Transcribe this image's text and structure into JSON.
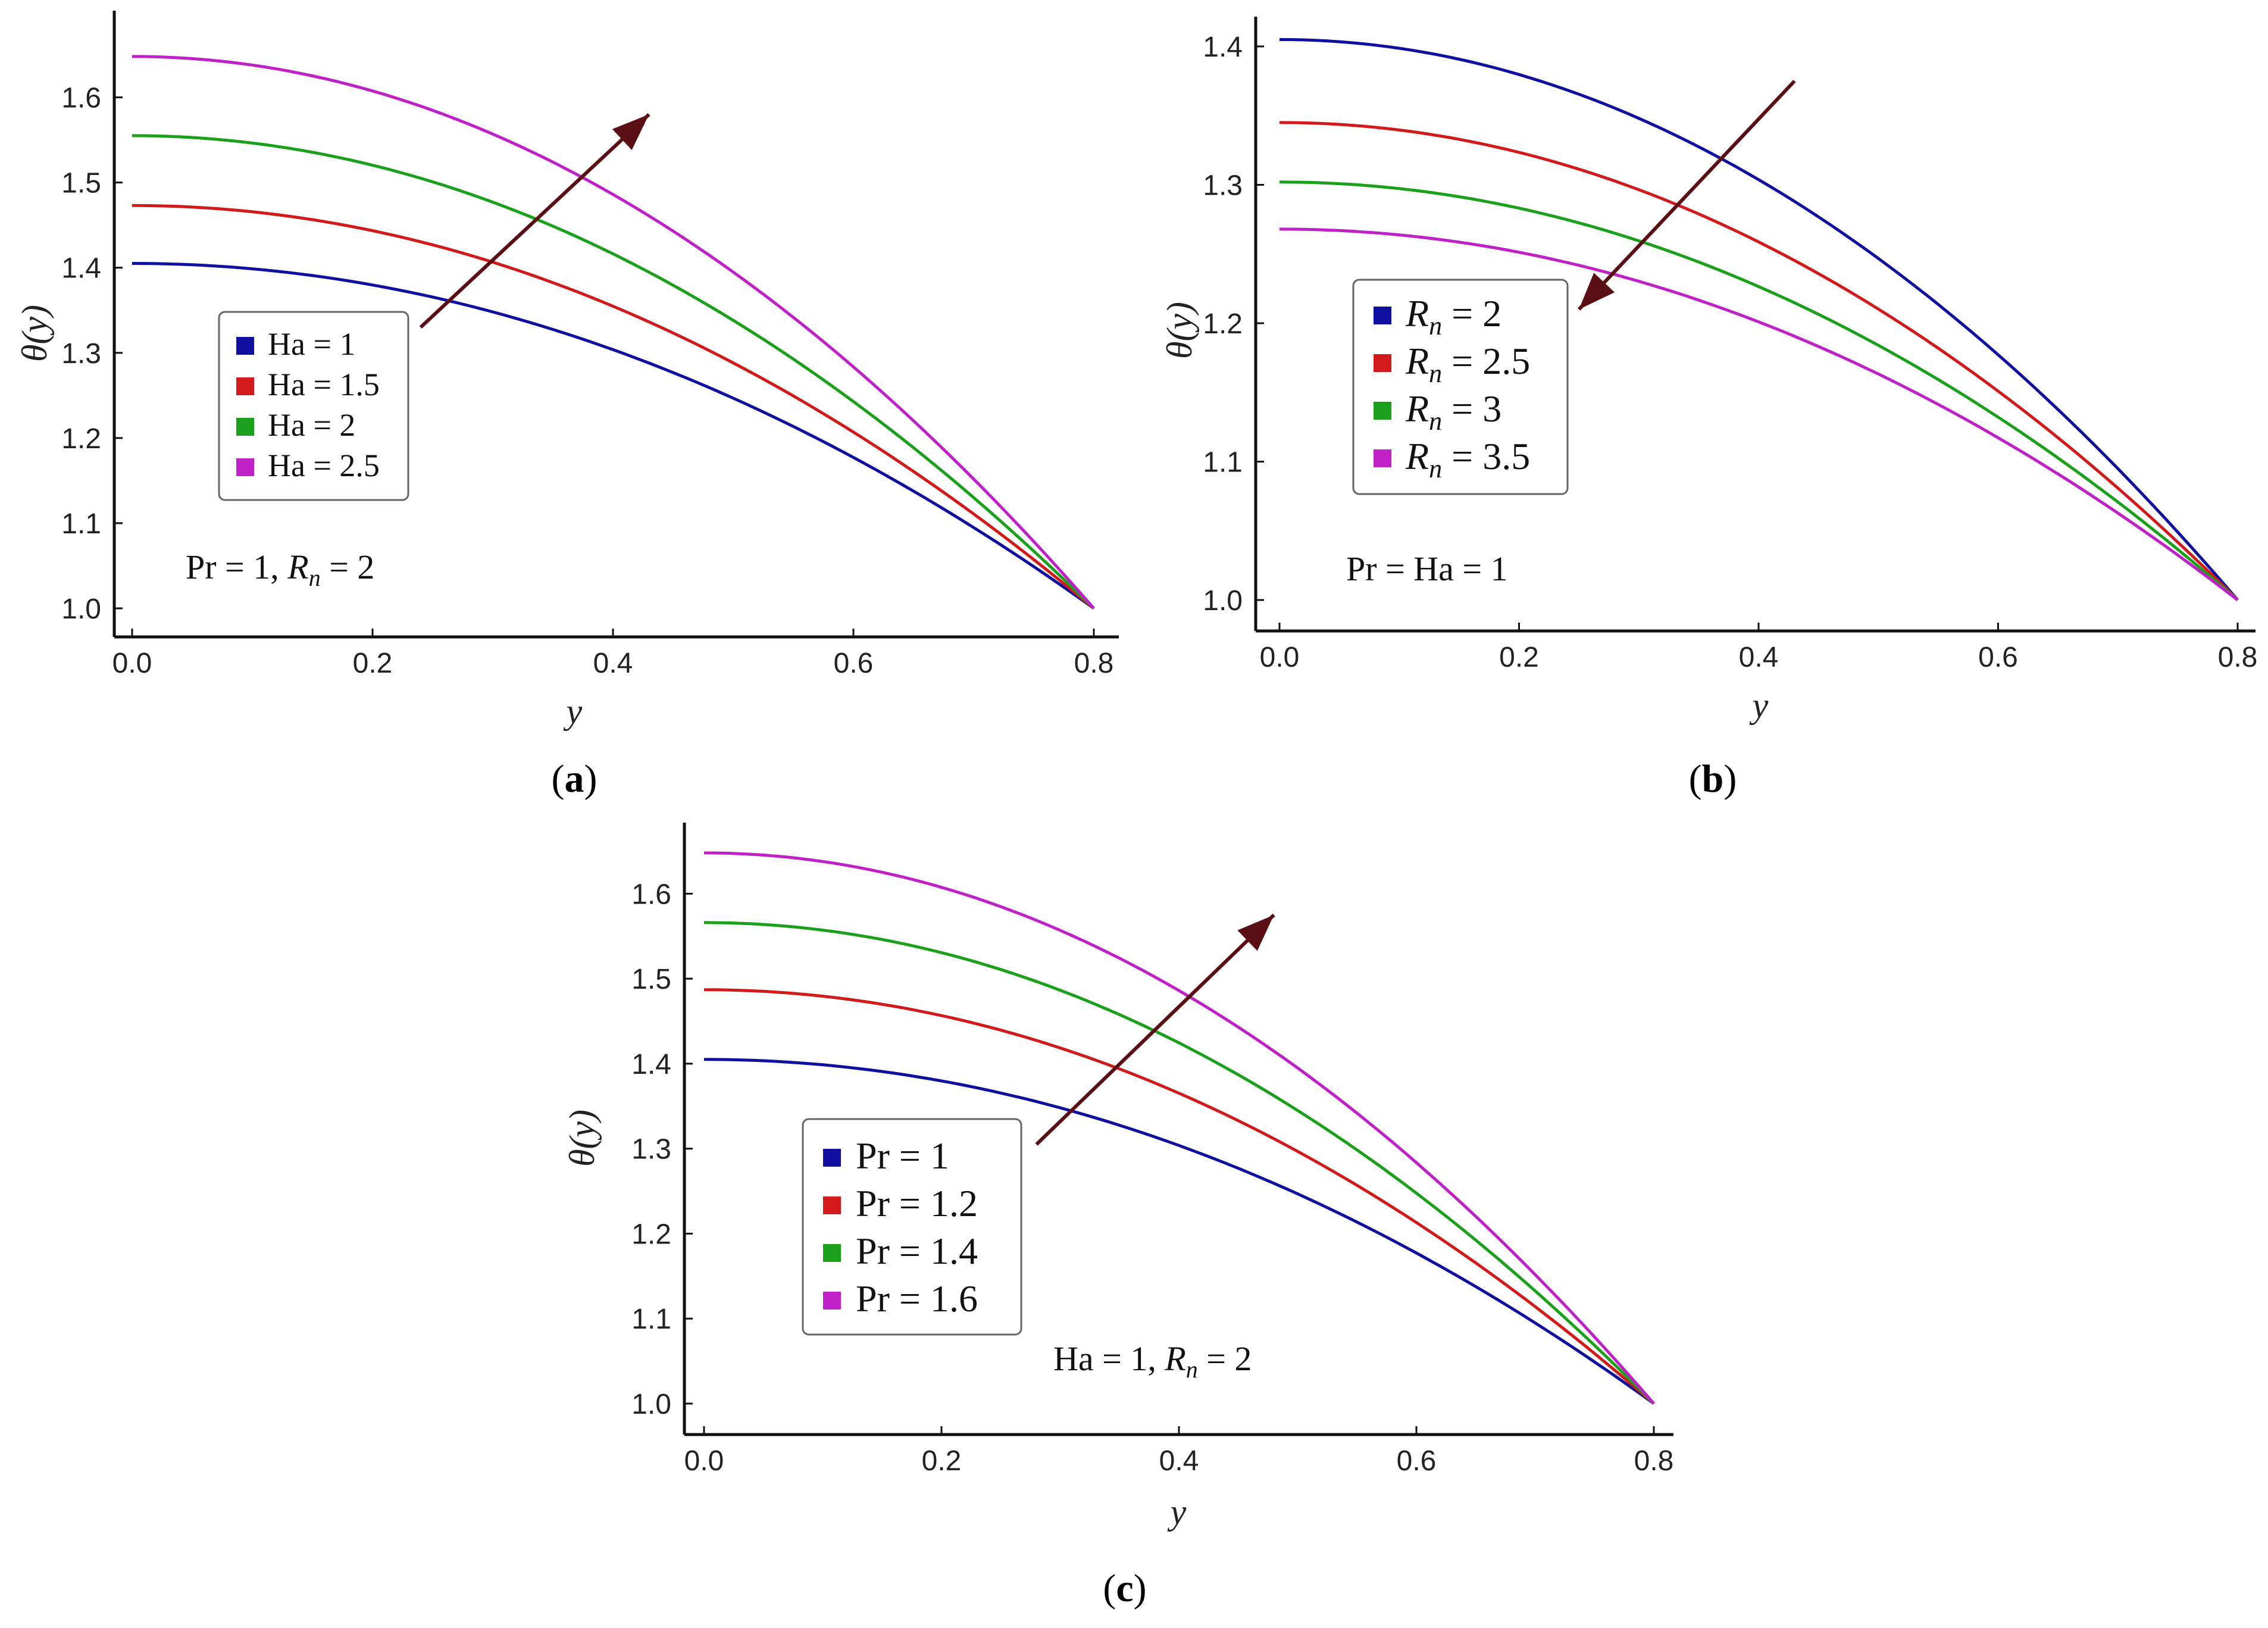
{
  "chart_data": [
    {
      "panel": "a",
      "type": "line",
      "xlabel": "y",
      "ylabel": "θ(y)",
      "xlim": [
        0,
        0.8
      ],
      "ylim": [
        1.0,
        1.65
      ],
      "x_ticks": [
        "0.0",
        "0.2",
        "0.4",
        "0.6",
        "0.8"
      ],
      "y_ticks": [
        "1.0",
        "1.1",
        "1.2",
        "1.3",
        "1.4",
        "1.5",
        "1.6"
      ],
      "series": [
        {
          "name": "Ha = 1",
          "color": "#1010a0",
          "y0": 1.405
        },
        {
          "name": "Ha = 1.5",
          "color": "#d21a1a",
          "y0": 1.473
        },
        {
          "name": "Ha = 2",
          "color": "#1aa01a",
          "y0": 1.555
        },
        {
          "name": "Ha = 2.5",
          "color": "#c020c8",
          "y0": 1.648
        }
      ],
      "x_end": 0.8,
      "y_end": 1.0,
      "annotation": {
        "lead": "Pr = 1, ",
        "sym": "R",
        "sub": "n",
        "tail": " = 2"
      },
      "arrow": {
        "from": [
          0.24,
          1.33
        ],
        "to": [
          0.43,
          1.58
        ],
        "color": "#5a0f14"
      },
      "panel_label": "a"
    },
    {
      "panel": "b",
      "type": "line",
      "xlabel": "y",
      "ylabel": "θ(y)",
      "xlim": [
        0,
        0.8
      ],
      "ylim": [
        1.0,
        1.4
      ],
      "x_ticks": [
        "0.0",
        "0.2",
        "0.4",
        "0.6",
        "0.8"
      ],
      "y_ticks": [
        "1.0",
        "1.1",
        "1.2",
        "1.3",
        "1.4"
      ],
      "series": [
        {
          "name": "R",
          "sub": "n",
          "tail": " = 2",
          "color": "#1010a0",
          "y0": 1.405
        },
        {
          "name": "R",
          "sub": "n",
          "tail": " = 2.5",
          "color": "#d21a1a",
          "y0": 1.345
        },
        {
          "name": "R",
          "sub": "n",
          "tail": " = 3",
          "color": "#1aa01a",
          "y0": 1.302
        },
        {
          "name": "R",
          "sub": "n",
          "tail": " = 3.5",
          "color": "#c020c8",
          "y0": 1.268
        }
      ],
      "x_end": 0.8,
      "y_end": 1.0,
      "annotation": {
        "lead": "Pr = Ha = 1",
        "sym": "",
        "sub": "",
        "tail": ""
      },
      "arrow": {
        "from": [
          0.43,
          1.375
        ],
        "to": [
          0.25,
          1.21
        ],
        "color": "#5a0f14"
      },
      "panel_label": "b"
    },
    {
      "panel": "c",
      "type": "line",
      "xlabel": "y",
      "ylabel": "θ(y)",
      "xlim": [
        0,
        0.8
      ],
      "ylim": [
        1.0,
        1.65
      ],
      "x_ticks": [
        "0.0",
        "0.2",
        "0.4",
        "0.6",
        "0.8"
      ],
      "y_ticks": [
        "1.0",
        "1.1",
        "1.2",
        "1.3",
        "1.4",
        "1.5",
        "1.6"
      ],
      "series": [
        {
          "name": "Pr = 1",
          "color": "#1010a0",
          "y0": 1.405
        },
        {
          "name": "Pr = 1.2",
          "color": "#d21a1a",
          "y0": 1.487
        },
        {
          "name": "Pr = 1.4",
          "color": "#1aa01a",
          "y0": 1.566
        },
        {
          "name": "Pr = 1.6",
          "color": "#c020c8",
          "y0": 1.648
        }
      ],
      "x_end": 0.8,
      "y_end": 1.0,
      "annotation": {
        "lead": "Ha = 1, ",
        "sym": "R",
        "sub": "n",
        "tail": " = 2"
      },
      "arrow": {
        "from": [
          0.28,
          1.305
        ],
        "to": [
          0.48,
          1.575
        ],
        "color": "#5a0f14"
      },
      "panel_label": "c"
    }
  ]
}
